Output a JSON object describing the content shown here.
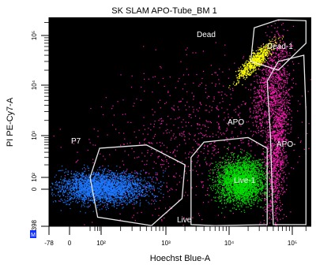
{
  "chart_data": {
    "type": "scatter",
    "title": "SK SLAM APO-Tube_BM 1",
    "xlabel": "Hoechst Blue-A",
    "ylabel": "PI PE-Cy7-A",
    "x_scale": "logicle",
    "y_scale": "logicle",
    "xlim": [
      -78,
      262144
    ],
    "ylim": [
      -398,
      262144
    ],
    "x_ticks": [
      "-78",
      "0",
      "10²",
      "10³",
      "10⁴",
      "10⁵"
    ],
    "y_ticks": [
      "-398",
      "0",
      "10²",
      "10³",
      "10⁴",
      "10⁵"
    ],
    "background": "#000000",
    "series": [
      {
        "name": "P7",
        "color": "#1e78ff",
        "x": [
          40,
          1200
        ],
        "y": [
          -200,
          250
        ]
      },
      {
        "name": "Live-1",
        "color": "#00e000",
        "x": [
          3500,
          30000
        ],
        "y": [
          -200,
          300
        ]
      },
      {
        "name": "APO",
        "color": "#ff1eb4",
        "x": [
          200,
          200000
        ],
        "y": [
          -200,
          20000
        ]
      },
      {
        "name": "Dead-1",
        "color": "#ffff00",
        "x": [
          20000,
          90000
        ],
        "y": [
          20000,
          150000
        ]
      }
    ],
    "gates": [
      {
        "label": "Dead"
      },
      {
        "label": "Dead-1"
      },
      {
        "label": "APO"
      },
      {
        "label": "APO-"
      },
      {
        "label": "P7"
      },
      {
        "label": "Live-1"
      },
      {
        "label": "Live"
      }
    ],
    "grid": false,
    "legend": "none"
  }
}
